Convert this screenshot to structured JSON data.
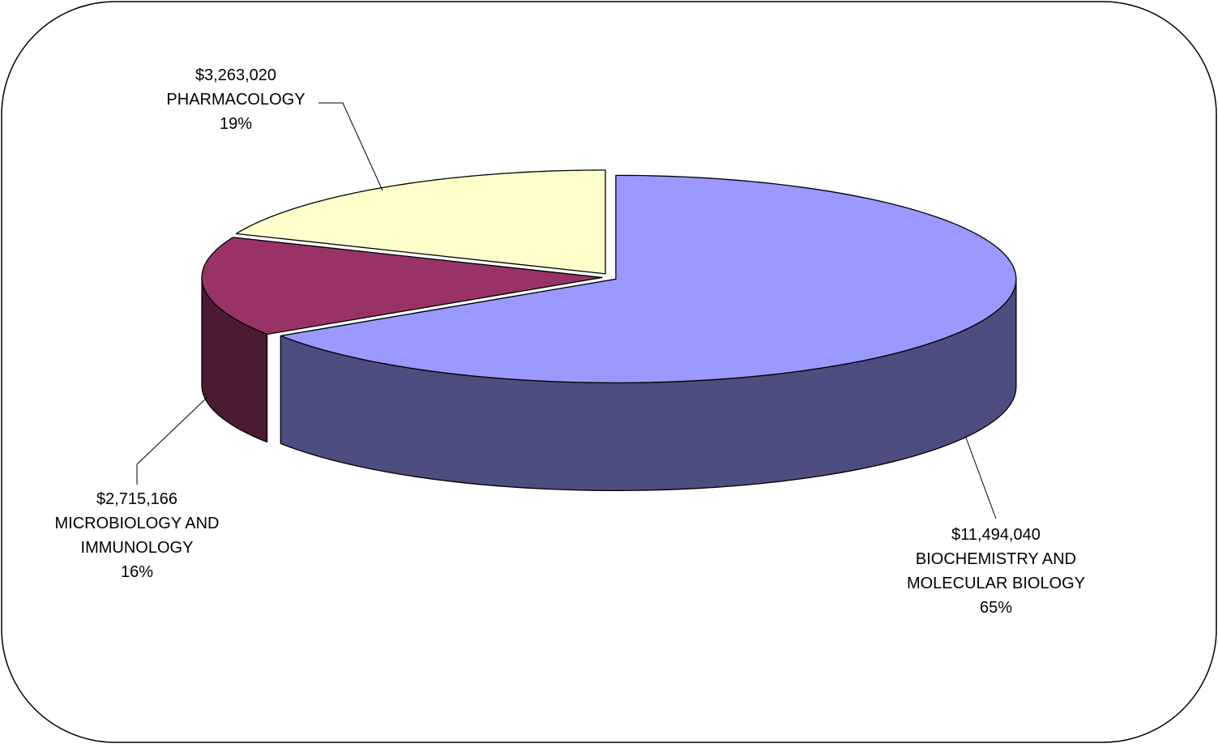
{
  "chart_data": {
    "type": "pie",
    "style": "3d-exploded",
    "title": "",
    "slices": [
      {
        "amount": "$11,494,040",
        "label_lines": [
          "BIOCHEMISTRY AND",
          "MOLECULAR BIOLOGY"
        ],
        "percent": "65%",
        "value": 11494040,
        "top_color": "#9999ff",
        "side_color": "#4d4d7f"
      },
      {
        "amount": "$2,715,166",
        "label_lines": [
          "MICROBIOLOGY AND",
          "IMMUNOLOGY"
        ],
        "percent": "16%",
        "value": 2715166,
        "top_color": "#993366",
        "side_color": "#4d1a33"
      },
      {
        "amount": "$3,263,020",
        "label_lines": [
          "PHARMACOLOGY"
        ],
        "percent": "19%",
        "value": 3263020,
        "top_color": "#ffffcc",
        "side_color": "#807f66"
      }
    ],
    "legend": "none",
    "start_angle_deg": 90,
    "direction": "clockwise"
  }
}
